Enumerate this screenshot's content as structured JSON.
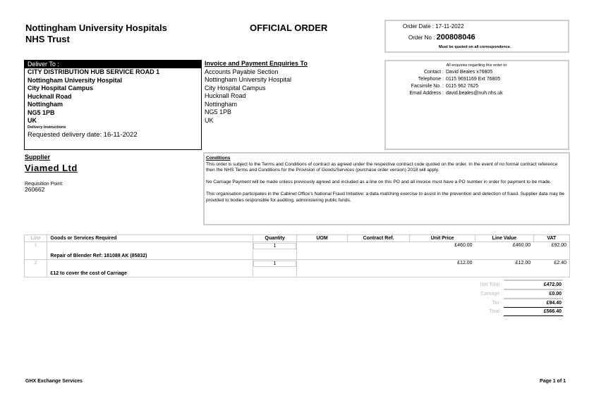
{
  "header": {
    "org_line1": "Nottingham University Hospitals",
    "org_line2": "NHS Trust",
    "title": "OFFICIAL ORDER",
    "order_date_label": "Order Date :",
    "order_date": "17-11-2022",
    "order_no_label": "Order No :",
    "order_no": "200808046",
    "quote_note": "Must be quoted on all correspondence."
  },
  "deliver": {
    "label": "Deliver To :",
    "lines": [
      "CITY DISTRIBUTION HUB SERVICE ROAD 1",
      "Nottingham University Hospital",
      "City Hospital Campus",
      "Hucknall Road",
      "Nottingham",
      "NG5 1PB",
      "UK"
    ],
    "instructions_label": "Delivery Instructions",
    "instructions": "Requested delivery date: 16-11-2022"
  },
  "invoice": {
    "label": "Invoice and Payment Enquiries To",
    "lines": [
      "Accounts Payable Section",
      "Nottingham University Hospital",
      "City Hospital Campus",
      "Hucknall Road",
      "Nottingham",
      "NG5 1PB",
      "UK"
    ]
  },
  "contact": {
    "note": "All enquiries regarding this order to:",
    "rows": [
      {
        "label": "Contact :",
        "value": "David Beales x76805"
      },
      {
        "label": "Telephone :",
        "value": "0115 9691169 Ext 76805"
      },
      {
        "label": "Facsimile No. :",
        "value": "0115 962 7625"
      },
      {
        "label": "Email Address :",
        "value": "david.beales@nuh.nhs.uk"
      }
    ]
  },
  "supplier": {
    "label": "Supplier",
    "name": "Viamed Ltd",
    "req_label": "Requisition Point:",
    "req_value": "260662"
  },
  "conditions": {
    "label": "Conditions",
    "paras": [
      "This order is subject to the Terms and Conditions of contract as agreed under the respective contract code quoted on the order. In the event of no formal contract reference then the NHS Terms and Conditions for the Provision of Goods/Services (purchase order version) 2018 will apply.",
      "No Carriage Payment will be made unless previously agreed and included as a line on this PO and all invoice must have a PO number in order for payment to be made.",
      "This organisation participates in the Cabinet Office's National Fraud Initiative: a data matching exercise to assist in the prevention and detection of fraud. Supplier data may be provided to bodies responsible for auditing, administering public funds."
    ]
  },
  "table": {
    "headers": [
      "Line",
      "Goods or Services Required",
      "Quantity",
      "UOM",
      "Contract Ref.",
      "Unit Price",
      "Line Value",
      "VAT"
    ],
    "rows": [
      {
        "line": "1",
        "desc": "Repair of Blender Ref: 181088 AK (85832)",
        "qty": "1",
        "uom": "",
        "ref": "",
        "unit": "£460.00",
        "value": "£460.00",
        "vat": "£92.00"
      },
      {
        "line": "2",
        "desc": "£12 to cover the cost of Carriage",
        "qty": "1",
        "uom": "",
        "ref": "",
        "unit": "£12.00",
        "value": "£12.00",
        "vat": "£2.40"
      }
    ]
  },
  "totals": [
    {
      "label": "Net Total :",
      "value": "£472.00"
    },
    {
      "label": "Carriage :",
      "value": "£0.00"
    },
    {
      "label": "Tax :",
      "value": "£94.40"
    },
    {
      "label": "Total :",
      "value": "£566.40"
    }
  ],
  "footer": {
    "left": "GHX Exchange Services",
    "right": "Page 1 of 1"
  }
}
